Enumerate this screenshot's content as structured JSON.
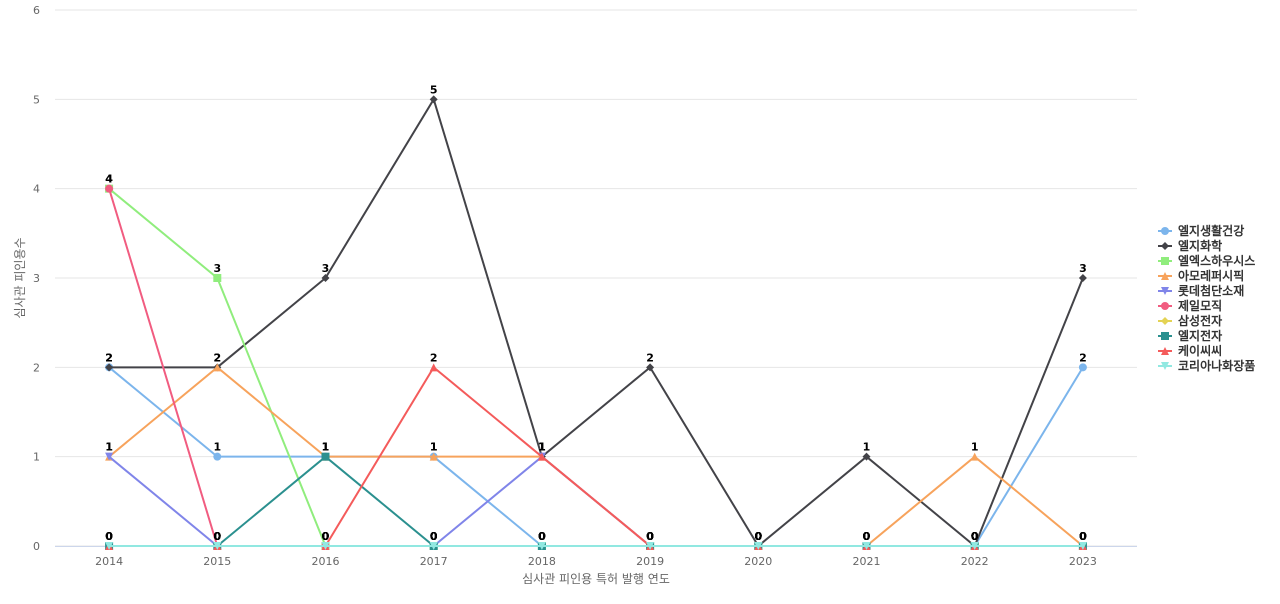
{
  "chart_data": {
    "type": "line",
    "x_label": "심사관 피인용 특허 발행 연도",
    "y_label": "심사관 피인용수",
    "categories": [
      "2014",
      "2015",
      "2016",
      "2017",
      "2018",
      "2019",
      "2020",
      "2021",
      "2022",
      "2023"
    ],
    "ylim": [
      0,
      6
    ],
    "yticks": [
      0,
      1,
      2,
      3,
      4,
      5,
      6
    ],
    "grid": true,
    "legend": "right",
    "series": [
      {
        "name": "엘지생활건강",
        "color": "#7cb5ec",
        "marker": "circle",
        "values": [
          2,
          1,
          1,
          1,
          0,
          0,
          0,
          0,
          0,
          2
        ]
      },
      {
        "name": "엘지화학",
        "color": "#434348",
        "marker": "diamond",
        "values": [
          2,
          2,
          3,
          5,
          1,
          2,
          0,
          1,
          0,
          3
        ]
      },
      {
        "name": "엘엑스하우시스",
        "color": "#90ed7d",
        "marker": "square",
        "values": [
          4,
          3,
          0,
          0,
          0,
          0,
          0,
          0,
          0,
          0
        ]
      },
      {
        "name": "아모레퍼시픽",
        "color": "#f7a35c",
        "marker": "triangle",
        "values": [
          1,
          2,
          1,
          1,
          1,
          0,
          0,
          0,
          1,
          0
        ]
      },
      {
        "name": "롯데첨단소재",
        "color": "#8085e9",
        "marker": "triangle-down",
        "values": [
          1,
          0,
          0,
          0,
          1,
          0,
          0,
          0,
          0,
          0
        ]
      },
      {
        "name": "제일모직",
        "color": "#f15c80",
        "marker": "circle",
        "values": [
          4,
          0,
          0,
          0,
          0,
          0,
          0,
          0,
          0,
          0
        ]
      },
      {
        "name": "삼성전자",
        "color": "#e4d354",
        "marker": "diamond",
        "values": [
          0,
          0,
          0,
          0,
          0,
          0,
          0,
          0,
          0,
          0
        ]
      },
      {
        "name": "엘지전자",
        "color": "#2b908f",
        "marker": "square",
        "values": [
          0,
          0,
          1,
          0,
          0,
          0,
          0,
          0,
          0,
          0
        ]
      },
      {
        "name": "케이씨씨",
        "color": "#f45b5b",
        "marker": "triangle",
        "values": [
          0,
          0,
          0,
          2,
          1,
          0,
          0,
          0,
          0,
          0
        ]
      },
      {
        "name": "코리아나화장품",
        "color": "#91e8e1",
        "marker": "triangle-down",
        "values": [
          0,
          0,
          0,
          0,
          0,
          0,
          0,
          0,
          0,
          0
        ]
      }
    ]
  }
}
